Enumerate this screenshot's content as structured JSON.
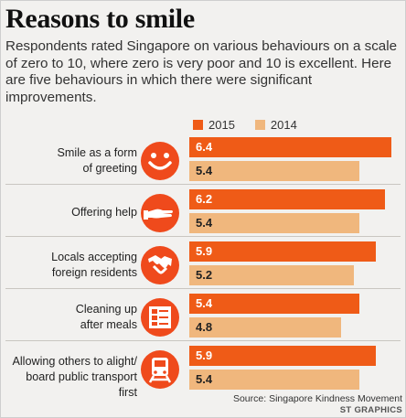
{
  "title": "Reasons to smile",
  "subtitle": "Respondents rated Singapore on various behaviours on a scale of zero to 10, where zero is very poor and 10 is excellent. Here are five behaviours in which there were significant improvements.",
  "source": "Source: Singapore Kindness Movement",
  "credit": "ST GRAPHICS",
  "colors": {
    "series_2015": "#ef5b17",
    "series_2014": "#f0b77d",
    "icon": "#ef4a1c"
  },
  "icons": [
    "smiley-icon",
    "helping-hand-icon",
    "handshake-icon",
    "tray-icon",
    "train-icon"
  ],
  "chart_data": {
    "type": "bar",
    "orientation": "horizontal",
    "title": "Reasons to smile",
    "categories": [
      "Smile as a form of greeting",
      "Offering help",
      "Locals accepting foreign residents",
      "Cleaning up after meals",
      "Allowing others to alight/ board public transport first"
    ],
    "category_lines": [
      [
        "Smile as a form",
        "of greeting"
      ],
      [
        "Offering help"
      ],
      [
        "Locals accepting",
        "foreign residents"
      ],
      [
        "Cleaning up",
        "after meals"
      ],
      [
        "Allowing others to alight/",
        "board public transport first"
      ]
    ],
    "series": [
      {
        "name": "2015",
        "values": [
          6.4,
          6.2,
          5.9,
          5.4,
          5.9
        ]
      },
      {
        "name": "2014",
        "values": [
          5.4,
          5.4,
          5.2,
          4.8,
          5.4
        ]
      }
    ],
    "value_labels": {
      "2015": [
        "6.4",
        "6.2",
        "5.9",
        "5.4",
        "5.9"
      ],
      "2014": [
        "5.4",
        "5.4",
        "5.2",
        "4.8",
        "5.4"
      ]
    },
    "legend": "top",
    "grid": false
  }
}
